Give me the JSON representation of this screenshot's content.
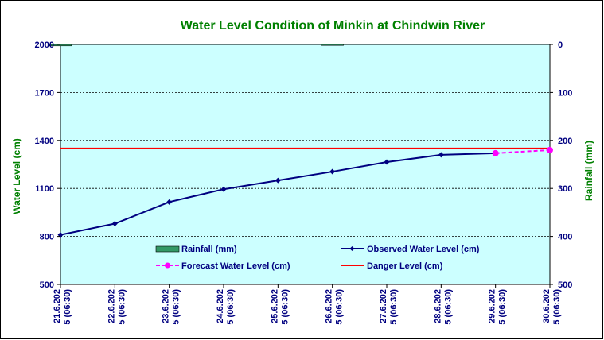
{
  "chart_data": {
    "type": "line",
    "title": "Water Level Condition of Minkin at Chindwin River",
    "ylabel": "Water Level (cm)",
    "y2label": "Rainfall (mm)",
    "ylim": [
      500,
      2000
    ],
    "y2lim": [
      500,
      0
    ],
    "yticks": [
      "2000",
      "1700",
      "1400",
      "1100",
      "800",
      "500"
    ],
    "y2ticks": [
      "0",
      "100",
      "200",
      "300",
      "400",
      "500"
    ],
    "categories": [
      "21.6.202\n5 (06:30)",
      "22.6.202\n5 (06:30)",
      "23.6.202\n5 (06:30)",
      "24.6.202\n5 (06:30)",
      "25.6.202\n5 (06:30)",
      "26.6.202\n5 (06:30)",
      "27.6.202\n5 (06:30)",
      "28.6.202\n5 (06:30)",
      "29.6.202\n5 (06:30)",
      "30.6.202\n5 (06:30)"
    ],
    "grid": true,
    "legend_position": "bottom-center",
    "series": [
      {
        "name": "Rainfall (mm)",
        "kind": "bar",
        "axis": "right",
        "color": "#339966",
        "values": [
          3,
          null,
          null,
          null,
          null,
          2,
          null,
          null,
          null,
          null
        ]
      },
      {
        "name": "Observed Water Level (cm)",
        "kind": "line",
        "axis": "left",
        "color": "#000080",
        "values": [
          810,
          880,
          1015,
          1095,
          1150,
          1205,
          1265,
          1310,
          1320,
          null
        ]
      },
      {
        "name": "Forecast Water Level (cm)",
        "kind": "dashed-line",
        "axis": "left",
        "color": "#ff00ff",
        "values": [
          null,
          null,
          null,
          null,
          null,
          null,
          null,
          null,
          1320,
          1340
        ]
      },
      {
        "name": "Danger Level (cm)",
        "kind": "hline",
        "axis": "left",
        "color": "#ff0000",
        "value": 1350
      }
    ]
  }
}
